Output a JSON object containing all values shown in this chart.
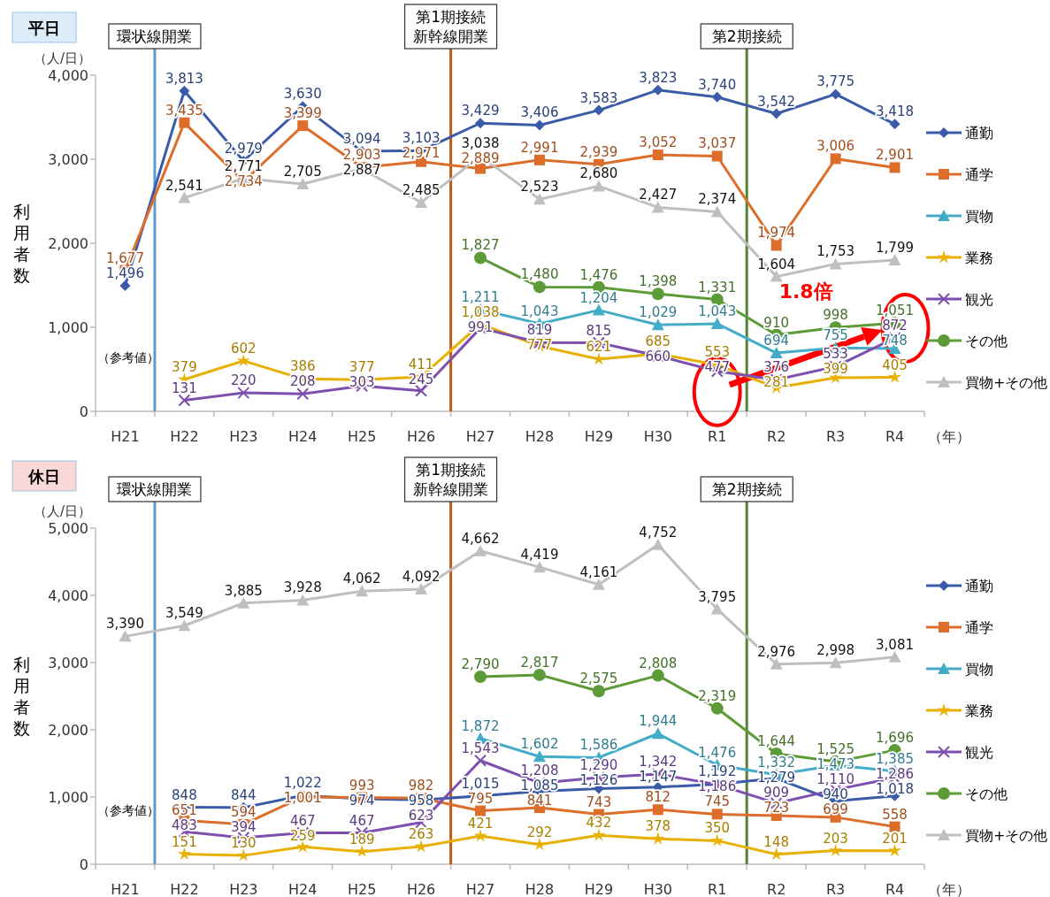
{
  "chart_data": [
    {
      "type": "line",
      "title": "平日",
      "ylabel": "利用者数",
      "xlabel": "（年）",
      "categories": [
        "H21",
        "H22",
        "H23",
        "H24",
        "H25",
        "H26",
        "H27",
        "H28",
        "H29",
        "H30",
        "R1",
        "R2",
        "R3",
        "R4"
      ],
      "ylim": [
        0,
        4000
      ],
      "yticks": [
        0,
        {
          "value": 1000,
          "label": "1,000"
        },
        {
          "value": 2000,
          "label": "2,000"
        },
        {
          "value": 3000,
          "label": "3,000"
        },
        {
          "value": 4000,
          "label": "4,000"
        }
      ],
      "legend": "right",
      "series": [
        {
          "name": "通勤",
          "color": "#3a5ca8",
          "marker": "diamond",
          "values": [
            1496,
            3813,
            2979,
            3630,
            3094,
            3103,
            3429,
            3406,
            3583,
            3823,
            3740,
            3542,
            3775,
            3418
          ],
          "value_labels": [
            "1,496",
            "3,813",
            "2,979",
            "3,630",
            "3,094",
            "3,103",
            "3,429",
            "3,406",
            "3,583",
            "3,823",
            "3,740",
            "3,542",
            "3,775",
            "3,418"
          ]
        },
        {
          "name": "通学",
          "color": "#dd6d2a",
          "marker": "square",
          "values": [
            1677,
            3435,
            2734,
            3399,
            2903,
            2971,
            2889,
            2991,
            2939,
            3052,
            3037,
            1974,
            3006,
            2901
          ],
          "value_labels": [
            "1,677",
            "3,435",
            "2,734",
            "3,399",
            "2,903",
            "2,971",
            "2,889",
            "2,991",
            "2,939",
            "3,052",
            "3,037",
            "1,974",
            "3,006",
            "2,901"
          ]
        },
        {
          "name": "買物",
          "color": "#45acc8",
          "marker": "triangle",
          "values": [
            null,
            null,
            null,
            null,
            null,
            null,
            1211,
            1043,
            1204,
            1029,
            1043,
            694,
            755,
            748
          ],
          "value_labels": [
            null,
            null,
            null,
            null,
            null,
            null,
            "1,211",
            "1,043",
            "1,204",
            "1,029",
            "1,043",
            "694",
            "755",
            "748"
          ]
        },
        {
          "name": "業務",
          "color": "#e8b000",
          "marker": "star",
          "values": [
            null,
            379,
            602,
            386,
            377,
            411,
            1038,
            777,
            621,
            685,
            553,
            281,
            399,
            405
          ],
          "value_labels": [
            null,
            "379",
            "602",
            "386",
            "377",
            "411",
            "1,038",
            "777",
            "621",
            "685",
            "553",
            "281",
            "399",
            "405"
          ]
        },
        {
          "name": "観光",
          "color": "#7e4fae",
          "marker": "cross",
          "values": [
            null,
            131,
            220,
            208,
            303,
            245,
            991,
            819,
            815,
            660,
            477,
            376,
            533,
            872
          ],
          "value_labels": [
            null,
            "131",
            "220",
            "208",
            "303",
            "245",
            "991",
            "819",
            "815",
            "660",
            "477",
            "376",
            "533",
            "872"
          ]
        },
        {
          "name": "その他",
          "color": "#5d9b38",
          "marker": "circle",
          "values": [
            null,
            null,
            null,
            null,
            null,
            null,
            1827,
            1480,
            1476,
            1398,
            1331,
            910,
            998,
            1051
          ],
          "value_labels": [
            null,
            null,
            null,
            null,
            null,
            null,
            "1,827",
            "1,480",
            "1,476",
            "1,398",
            "1,331",
            "910",
            "998",
            "1,051"
          ]
        },
        {
          "name": "買物+その他",
          "color": "#bfbfbf",
          "marker": "triangle",
          "values": [
            null,
            2541,
            2771,
            2705,
            2887,
            2485,
            3038,
            2523,
            2680,
            2427,
            2374,
            1604,
            1753,
            1799
          ],
          "value_labels": [
            null,
            "2,541",
            "2,771",
            "2,705",
            "2,887",
            "2,485",
            "3,038",
            "2,523",
            "2,680",
            "2,427",
            "2,374",
            "1,604",
            "1,753",
            "1,799"
          ]
        }
      ],
      "ref_lines": [
        {
          "axis": "x",
          "value": "H22",
          "label": "環状線開業",
          "color": "#5b9bd5"
        },
        {
          "axis": "x",
          "value": "H27",
          "label": "第1期接続新幹線開業",
          "color": "#c55a11"
        },
        {
          "axis": "x",
          "value": "R2",
          "label": "第2期接続",
          "color": "#548235"
        }
      ],
      "annotations": [
        "（人/日）",
        "（参考値）",
        "1.8倍"
      ]
    },
    {
      "type": "line",
      "title": "休日",
      "ylabel": "利用者数",
      "xlabel": "（年）",
      "categories": [
        "H21",
        "H22",
        "H23",
        "H24",
        "H25",
        "H26",
        "H27",
        "H28",
        "H29",
        "H30",
        "R1",
        "R2",
        "R3",
        "R4"
      ],
      "ylim": [
        0,
        5000
      ],
      "yticks": [
        0,
        {
          "value": 1000,
          "label": "1,000"
        },
        {
          "value": 2000,
          "label": "2,000"
        },
        {
          "value": 3000,
          "label": "3,000"
        },
        {
          "value": 4000,
          "label": "4,000"
        },
        {
          "value": 5000,
          "label": "5,000"
        }
      ],
      "legend": "right",
      "series": [
        {
          "name": "通勤",
          "color": "#3a5ca8",
          "marker": "diamond",
          "values": [
            null,
            848,
            844,
            1022,
            974,
            958,
            1015,
            1085,
            1126,
            1147,
            1192,
            1279,
            940,
            1018
          ],
          "value_labels": [
            null,
            "848",
            "844",
            "1,022",
            "974",
            "958",
            "1,015",
            "1,085",
            "1,126",
            "1,147",
            "1,192",
            "1,279",
            "940",
            "1,018"
          ]
        },
        {
          "name": "通学",
          "color": "#dd6d2a",
          "marker": "square",
          "values": [
            null,
            651,
            594,
            1001,
            993,
            982,
            795,
            841,
            743,
            812,
            745,
            723,
            699,
            558
          ],
          "value_labels": [
            null,
            "651",
            "594",
            "1,001",
            "993",
            "982",
            "795",
            "841",
            "743",
            "812",
            "745",
            "723",
            "699",
            "558"
          ]
        },
        {
          "name": "買物",
          "color": "#45acc8",
          "marker": "triangle",
          "values": [
            null,
            null,
            null,
            null,
            null,
            null,
            1872,
            1602,
            1586,
            1944,
            1476,
            1332,
            1473,
            1385
          ],
          "value_labels": [
            null,
            null,
            null,
            null,
            null,
            null,
            "1,872",
            "1,602",
            "1,586",
            "1,944",
            "1,476",
            "1,332",
            "1,473",
            "1,385"
          ]
        },
        {
          "name": "業務",
          "color": "#e8b000",
          "marker": "star",
          "values": [
            null,
            151,
            130,
            259,
            189,
            263,
            421,
            292,
            432,
            378,
            350,
            148,
            203,
            201
          ],
          "value_labels": [
            null,
            "151",
            "130",
            "259",
            "189",
            "263",
            "421",
            "292",
            "432",
            "378",
            "350",
            "148",
            "203",
            "201"
          ]
        },
        {
          "name": "観光",
          "color": "#7e4fae",
          "marker": "cross",
          "values": [
            null,
            483,
            394,
            467,
            467,
            623,
            1543,
            1208,
            1290,
            1342,
            1186,
            909,
            1110,
            1286
          ],
          "value_labels": [
            null,
            "483",
            "394",
            "467",
            "467",
            "623",
            "1,543",
            "1,208",
            "1,290",
            "1,342",
            "1,186",
            "909",
            "1,110",
            "1,286"
          ]
        },
        {
          "name": "その他",
          "color": "#5d9b38",
          "marker": "circle",
          "values": [
            null,
            null,
            null,
            null,
            null,
            null,
            2790,
            2817,
            2575,
            2808,
            2319,
            1644,
            1525,
            1696
          ],
          "value_labels": [
            null,
            null,
            null,
            null,
            null,
            null,
            "2,790",
            "2,817",
            "2,575",
            "2,808",
            "2,319",
            "1,644",
            "1,525",
            "1,696"
          ]
        },
        {
          "name": "買物+その他",
          "color": "#bfbfbf",
          "marker": "triangle",
          "values": [
            3390,
            3549,
            3885,
            3928,
            4062,
            4092,
            4662,
            4419,
            4161,
            4752,
            3795,
            2976,
            2998,
            3081
          ],
          "value_labels": [
            "3,390",
            "3,549",
            "3,885",
            "3,928",
            "4,062",
            "4,092",
            "4,662",
            "4,419",
            "4,161",
            "4,752",
            "3,795",
            "2,976",
            "2,998",
            "3,081"
          ]
        }
      ],
      "ref_lines": [
        {
          "axis": "x",
          "value": "H22",
          "label": "環状線開業",
          "color": "#5b9bd5"
        },
        {
          "axis": "x",
          "value": "H27",
          "label": "第1期接続新幹線開業",
          "color": "#c55a11"
        },
        {
          "axis": "x",
          "value": "R2",
          "label": "第2期接続",
          "color": "#548235"
        }
      ],
      "annotations": [
        "（人/日）",
        "（参考値）"
      ]
    }
  ]
}
